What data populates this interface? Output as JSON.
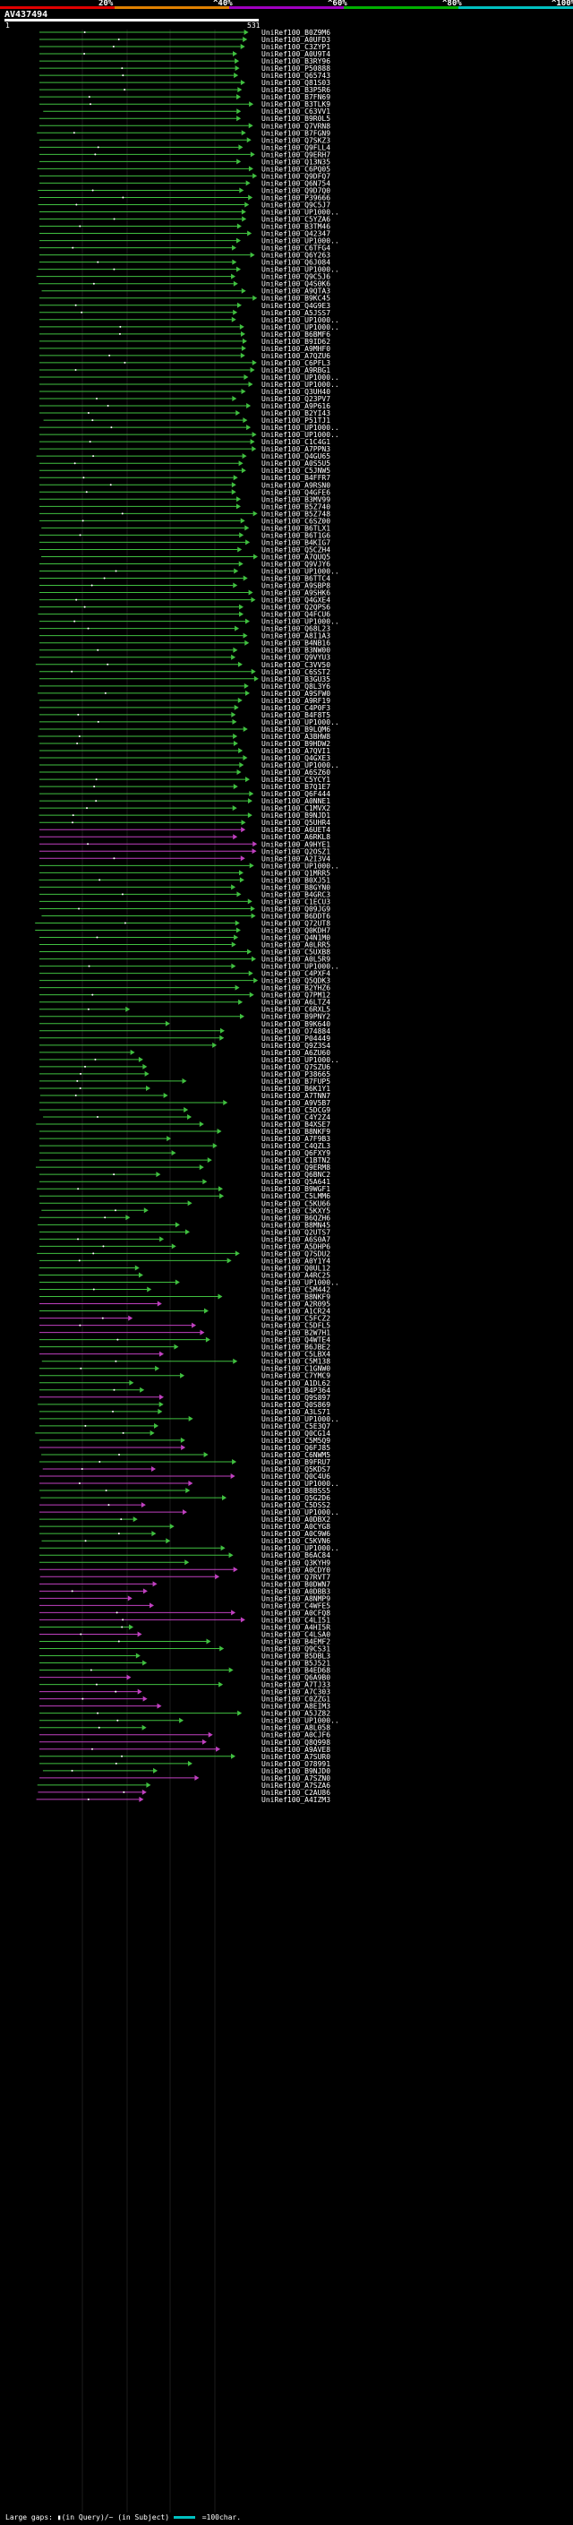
{
  "query": {
    "name": "AV437494",
    "start_label": "1",
    "end_label": "531"
  },
  "scale": {
    "ticks": [
      "20%",
      "^40%",
      "^60%",
      "^80%",
      "^100%"
    ],
    "colors": [
      "#e00000",
      "#e08000",
      "#a000c0",
      "#00b000",
      "#00c0c0"
    ]
  },
  "legend": {
    "text": "Large gaps: ▮(in Query)/~ (in Subject)",
    "scale": "=100char."
  },
  "colors": {
    "green": "#40c040",
    "magenta": "#c040c0",
    "white": "#ffffff"
  },
  "hits": [
    "UniRef100_B0Z9M6",
    "UniRef100_A0UFD3",
    "UniRef100_C3ZYP1",
    "UniRef100_A0U9T4",
    "UniRef100_B3RY96",
    "UniRef100_P50888",
    "UniRef100_Q65743",
    "UniRef100_Q81S03",
    "UniRef100_B3P5R6",
    "UniRef100_B7FN69",
    "UniRef100_B3TLK9",
    "UniRef100_C63VV1",
    "UniRef100_B9R0L5",
    "UniRef100_Q7VRN8",
    "UniRef100_B7FGN9",
    "UniRef100_Q7SKZ3",
    "UniRef100_Q9FLL4",
    "UniRef100_Q9ERH7",
    "UniRef100_Q13N35",
    "UniRef100_C6PQ05",
    "UniRef100_Q9DFQ7",
    "UniRef100_Q6N754",
    "UniRef100_Q9D7Q0",
    "UniRef100_P39666",
    "UniRef100_Q9C5J7",
    "UniRef100_UP1000..",
    "UniRef100_C5YZA6",
    "UniRef100_B3TM46",
    "UniRef100_Q42347",
    "UniRef100_UP1000..",
    "UniRef100_C6TFG4",
    "UniRef100_Q6Y263",
    "UniRef100_Q6J084",
    "UniRef100_UP1000..",
    "UniRef100_Q9C5J6",
    "UniRef100_Q4S0K6",
    "UniRef100_A9QTA3",
    "UniRef100_B9KC45",
    "UniRef100_Q4G9E3",
    "UniRef100_A5JSS7",
    "UniRef100_UP1000..",
    "UniRef100_UP1000..",
    "UniRef100_B6BMF6",
    "UniRef100_B9ID62",
    "UniRef100_A9MHF0",
    "UniRef100_A7QZU6",
    "UniRef100_C6PFL3",
    "UniRef100_A9RBG1",
    "UniRef100_UP1000..",
    "UniRef100_UP1000..",
    "UniRef100_Q3UH40",
    "UniRef100_Q23PV7",
    "UniRef100_A9P616",
    "UniRef100_B2YI43",
    "UniRef100_P51TJ1",
    "UniRef100_UP1000..",
    "UniRef100_UP1000..",
    "UniRef100_C1C4G1",
    "UniRef100_A7PPN3",
    "UniRef100_Q4GU65",
    "UniRef100_A0S5U5",
    "UniRef100_C5JNW5",
    "UniRef100_B4FFR7",
    "UniRef100_A9RSN0",
    "UniRef100_Q4GFE6",
    "UniRef100_B3MV99",
    "UniRef100_B5Z740",
    "UniRef100_B5Z748",
    "UniRef100_C6SZ00",
    "UniRef100_B6TLX1",
    "UniRef100_B6T1G6",
    "UniRef100_B4KIG7",
    "UniRef100_Q5CZH4",
    "UniRef100_A7QUQ5",
    "UniRef100_Q9VJY6",
    "UniRef100_UP1000..",
    "UniRef100_B6TTC4",
    "UniRef100_A9SBP8",
    "UniRef100_A9SHK6",
    "UniRef100_Q4GXE4",
    "UniRef100_Q2QPS6",
    "UniRef100_Q4FCU6",
    "UniRef100_UP1000..",
    "UniRef100_Q68L23",
    "UniRef100_A8I1A3",
    "UniRef100_B4NB16",
    "UniRef100_B3NW00",
    "UniRef100_Q9VYU3",
    "UniRef100_C3VV50",
    "UniRef100_C6SST2",
    "UniRef100_B3GU35",
    "UniRef100_Q8L3Y6",
    "UniRef100_A9SFW0",
    "UniRef100_A9RF19",
    "UniRef100_C4P0F3",
    "UniRef100_B4F8T5",
    "UniRef100_UP1000..",
    "UniRef100_B9LQM6",
    "UniRef100_A3BHW8",
    "UniRef100_B9HDW2",
    "UniRef100_A7QVI1",
    "UniRef100_Q4GXE3",
    "UniRef100_UP1000..",
    "UniRef100_A6SZ60",
    "UniRef100_C5YCY1",
    "UniRef100_B7Q1E7",
    "UniRef100_Q6F444",
    "UniRef100_A0NNE1",
    "UniRef100_C1MVX2",
    "UniRef100_B9NJD1",
    "UniRef100_Q5UHR4",
    "UniRef100_A6UET4",
    "UniRef100_A6RKL8",
    "UniRef100_A9HYE1",
    "UniRef100_Q2OSZ1",
    "UniRef100_A2I3V4",
    "UniRef100_UP1000..",
    "UniRef100_Q1MRR5",
    "UniRef100_B0XJ51",
    "UniRef100_B8GYN0",
    "UniRef100_B4GRC3",
    "UniRef100_C1ECU3",
    "UniRef100_Q09JG9",
    "UniRef100_B6DDT6",
    "UniRef100_Q72UT8",
    "UniRef100_Q0KDH7",
    "UniRef100_Q4N1M0",
    "UniRef100_A0LRR5",
    "UniRef100_C5UXB8",
    "UniRef100_A0L5R9",
    "UniRef100_UP1000..",
    "UniRef100_C4PXF4",
    "UniRef100_Q5QDK3",
    "UniRef100_B2YHZ6",
    "UniRef100_Q7PM12",
    "UniRef100_A6LTZ4",
    "UniRef100_C6RXL5",
    "UniRef100_B9PNY2",
    "UniRef100_B9K640",
    "UniRef100_O74884",
    "UniRef100_P04449",
    "UniRef100_Q9Z3S4",
    "UniRef100_A6ZU60",
    "UniRef100_UP1000..",
    "UniRef100_Q7SZU6",
    "UniRef100_P38665",
    "UniRef100_B7FUP5",
    "UniRef100_B6K1Y1",
    "UniRef100_A7TNN7",
    "UniRef100_A9V5B7",
    "UniRef100_C5DCG9",
    "UniRef100_C4Y2Z4",
    "UniRef100_B4XSE7",
    "UniRef100_B8NKF9",
    "UniRef100_A7F9B3",
    "UniRef100_C4QZL3",
    "UniRef100_Q6FXY9",
    "UniRef100_C1BTN2",
    "UniRef100_Q9ERM8",
    "UniRef100_Q6BNC2",
    "UniRef100_Q5A641",
    "UniRef100_B9WGF1",
    "UniRef100_C5LMM6",
    "UniRef100_C5KU66",
    "UniRef100_C5KXY5",
    "UniRef100_B6QZH6",
    "UniRef100_B8MN45",
    "UniRef100_Q2UTS7",
    "UniRef100_A6S0A7",
    "UniRef100_A5DHP6",
    "UniRef100_Q7SDU2",
    "UniRef100_A0Y1Y4",
    "UniRef100_Q0UL12",
    "UniRef100_A4RC25",
    "UniRef100_UP1000..",
    "UniRef100_C5M442",
    "UniRef100_B8NKF9",
    "UniRef100_A2R095",
    "UniRef100_A1CR24",
    "UniRef100_C5FCZ2",
    "UniRef100_C5DFL5",
    "UniRef100_B2W7H1",
    "UniRef100_Q4WTE4",
    "UniRef100_B6JBE2",
    "UniRef100_C5LBX4",
    "UniRef100_C5M138",
    "UniRef100_C1GNW0",
    "UniRef100_C7YMC9",
    "UniRef100_A1DL62",
    "UniRef100_B4P364",
    "UniRef100_Q9S897",
    "UniRef100_Q0S869",
    "UniRef100_A3LS71",
    "UniRef100_UP1000..",
    "UniRef100_C5E3Q7",
    "UniRef100_Q0CG14",
    "UniRef100_C5M5Q9",
    "UniRef100_Q6FJ85",
    "UniRef100_C6NWM5",
    "UniRef100_B9FRU7",
    "UniRef100_Q5KDS7",
    "UniRef100_Q0C4U6",
    "UniRef100_UP1000..",
    "UniRef100_B8BSS5",
    "UniRef100_Q5G2D6",
    "UniRef100_C5DSS2",
    "UniRef100_UP1000..",
    "UniRef100_A0DBX2",
    "UniRef100_A0CYG8",
    "UniRef100_A0C9W6",
    "UniRef100_C5KVN6",
    "UniRef100_UP1000..",
    "UniRef100_B6AC84",
    "UniRef100_Q3KYH9",
    "UniRef100_A0CDY0",
    "UniRef100_Q7RVT7",
    "UniRef100_B0DWN7",
    "UniRef100_A0DBB3",
    "UniRef100_A8NMP9",
    "UniRef100_C4WFE5",
    "UniRef100_A0CFQ8",
    "UniRef100_C4LI51",
    "UniRef100_A4HI5R",
    "UniRef100_C4LSA0",
    "UniRef100_B4EMF2",
    "UniRef100_Q9CS31",
    "UniRef100_B5DBL3",
    "UniRef100_B5J521",
    "UniRef100_B4ED68",
    "UniRef100_Q6A9B0",
    "UniRef100_A7TJ33",
    "UniRef100_A7C303",
    "UniRef100_C0ZZG1",
    "UniRef100_A8EIM3",
    "UniRef100_A5JZ82",
    "UniRef100_UP1000..",
    "UniRef100_A8L058",
    "UniRef100_A0CJF6",
    "UniRef100_Q8Q998",
    "UniRef100_A9AVE8",
    "UniRef100_A7SUR0",
    "UniRef100_O78991",
    "UniRef100_B9NJD0",
    "UniRef100_A7SZN0",
    "UniRef100_A7SZA6",
    "UniRef100_C2AU86",
    "UniRef100_A4IZM3"
  ]
}
